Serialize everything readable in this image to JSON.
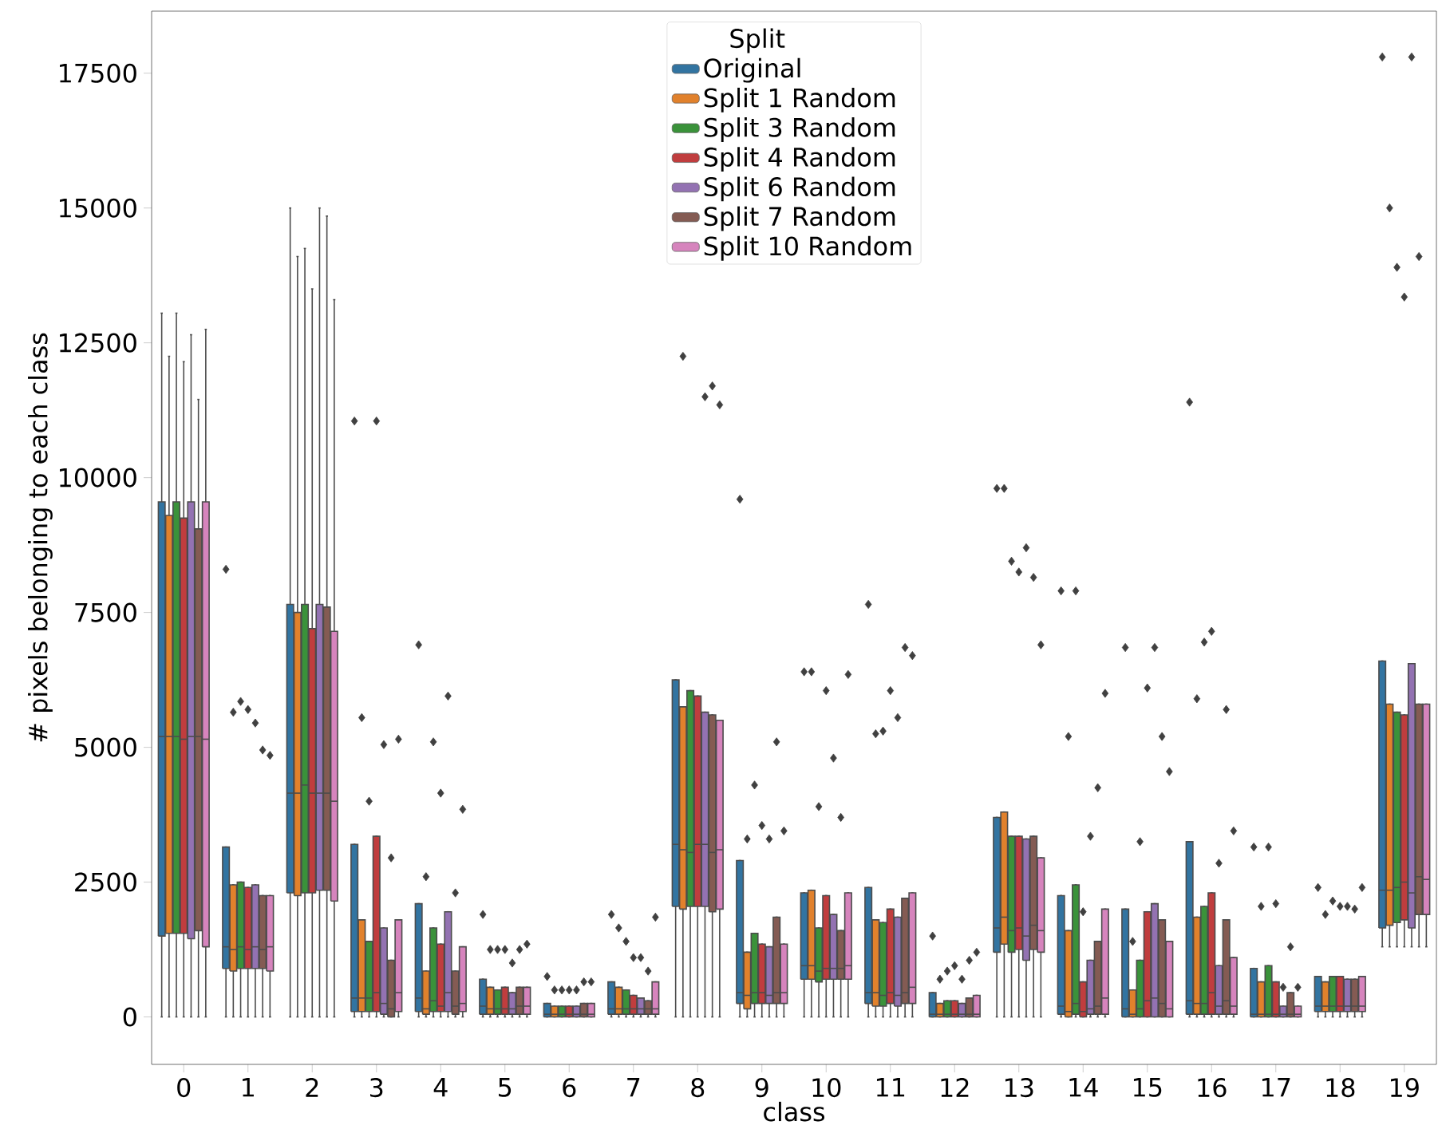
{
  "chart_data": {
    "type": "box",
    "xlabel": "class",
    "ylabel": "# pixels belonging to each class",
    "legend_title": "Split",
    "legend": "top",
    "categories": [
      "0",
      "1",
      "2",
      "3",
      "4",
      "5",
      "6",
      "7",
      "8",
      "9",
      "10",
      "11",
      "12",
      "13",
      "14",
      "15",
      "16",
      "17",
      "18",
      "19"
    ],
    "ylim": [
      -880,
      18650
    ],
    "yticks": [
      0,
      2500,
      5000,
      7500,
      10000,
      12500,
      15000,
      17500
    ],
    "series": [
      {
        "name": "Original",
        "color": "#3274a1",
        "boxes": [
          {
            "low": 0,
            "q1": 1500,
            "median": 5200,
            "q3": 9550,
            "high": 13050
          },
          {
            "low": 0,
            "q1": 900,
            "median": 1300,
            "q3": 3150,
            "high": 3150,
            "outliers": [
              8300
            ]
          },
          {
            "low": 0,
            "q1": 2300,
            "median": 4150,
            "q3": 7650,
            "high": 15000
          },
          {
            "low": 0,
            "q1": 100,
            "median": 350,
            "q3": 3200,
            "high": 3200,
            "outliers": [
              11050
            ]
          },
          {
            "low": 0,
            "q1": 100,
            "median": 350,
            "q3": 2100,
            "high": 2100,
            "outliers": [
              6900
            ]
          },
          {
            "low": 0,
            "q1": 50,
            "median": 200,
            "q3": 700,
            "high": 700,
            "outliers": [
              1900
            ]
          },
          {
            "low": 0,
            "q1": 0,
            "median": 50,
            "q3": 250,
            "high": 250,
            "outliers": [
              750
            ]
          },
          {
            "low": 0,
            "q1": 50,
            "median": 150,
            "q3": 650,
            "high": 650,
            "outliers": [
              1900
            ]
          },
          {
            "low": 0,
            "q1": 2050,
            "median": 3200,
            "q3": 6250,
            "high": 6250
          },
          {
            "low": 0,
            "q1": 250,
            "median": 450,
            "q3": 2900,
            "high": 2900,
            "outliers": [
              9600
            ]
          },
          {
            "low": 0,
            "q1": 700,
            "median": 950,
            "q3": 2300,
            "high": 2300,
            "outliers": [
              6400
            ]
          },
          {
            "low": 0,
            "q1": 250,
            "median": 450,
            "q3": 2400,
            "high": 2400,
            "outliers": [
              7650
            ]
          },
          {
            "low": 0,
            "q1": 0,
            "median": 50,
            "q3": 450,
            "high": 450,
            "outliers": [
              1500
            ]
          },
          {
            "low": 0,
            "q1": 1200,
            "median": 1650,
            "q3": 3700,
            "high": 3700,
            "outliers": [
              9800
            ]
          },
          {
            "low": 0,
            "q1": 50,
            "median": 200,
            "q3": 2250,
            "high": 2250,
            "outliers": [
              7900
            ]
          },
          {
            "low": 0,
            "q1": 0,
            "median": 150,
            "q3": 2000,
            "high": 2000,
            "outliers": [
              6850
            ]
          },
          {
            "low": 0,
            "q1": 50,
            "median": 300,
            "q3": 3250,
            "high": 3250,
            "outliers": [
              11400
            ]
          },
          {
            "low": 0,
            "q1": 0,
            "median": 50,
            "q3": 900,
            "high": 900,
            "outliers": [
              3150
            ]
          },
          {
            "low": 0,
            "q1": 100,
            "median": 200,
            "q3": 750,
            "high": 750,
            "outliers": [
              2400
            ]
          },
          {
            "low": 1300,
            "q1": 1650,
            "median": 2350,
            "q3": 6600,
            "high": 6600,
            "outliers": [
              17800
            ]
          }
        ]
      },
      {
        "name": "Split 1 Random",
        "color": "#e1812c",
        "boxes": [
          {
            "low": 0,
            "q1": 1550,
            "median": 5200,
            "q3": 9300,
            "high": 12250
          },
          {
            "low": 0,
            "q1": 850,
            "median": 1250,
            "q3": 2450,
            "high": 2450,
            "outliers": [
              5650
            ]
          },
          {
            "low": 0,
            "q1": 2250,
            "median": 4150,
            "q3": 7500,
            "high": 14100
          },
          {
            "low": 0,
            "q1": 100,
            "median": 350,
            "q3": 1800,
            "high": 1800,
            "outliers": [
              5550
            ]
          },
          {
            "low": 0,
            "q1": 50,
            "median": 150,
            "q3": 850,
            "high": 850,
            "outliers": [
              2600
            ]
          },
          {
            "low": 0,
            "q1": 50,
            "median": 150,
            "q3": 550,
            "high": 550,
            "outliers": [
              1250
            ]
          },
          {
            "low": 0,
            "q1": 0,
            "median": 50,
            "q3": 200,
            "high": 200,
            "outliers": [
              500
            ]
          },
          {
            "low": 0,
            "q1": 50,
            "median": 150,
            "q3": 550,
            "high": 550,
            "outliers": [
              1650
            ]
          },
          {
            "low": 0,
            "q1": 2000,
            "median": 3100,
            "q3": 5750,
            "high": 5750,
            "outliers": [
              12250
            ]
          },
          {
            "low": 0,
            "q1": 150,
            "median": 400,
            "q3": 1200,
            "high": 1200,
            "outliers": [
              3300
            ]
          },
          {
            "low": 0,
            "q1": 700,
            "median": 950,
            "q3": 2350,
            "high": 2350,
            "outliers": [
              6400
            ]
          },
          {
            "low": 0,
            "q1": 200,
            "median": 450,
            "q3": 1800,
            "high": 1800,
            "outliers": [
              5250
            ]
          },
          {
            "low": 0,
            "q1": 0,
            "median": 50,
            "q3": 250,
            "high": 250,
            "outliers": [
              700
            ]
          },
          {
            "low": 0,
            "q1": 1350,
            "median": 1850,
            "q3": 3800,
            "high": 3800,
            "outliers": [
              9800
            ]
          },
          {
            "low": 0,
            "q1": 0,
            "median": 100,
            "q3": 1600,
            "high": 1600,
            "outliers": [
              5200
            ]
          },
          {
            "low": 0,
            "q1": 0,
            "median": 50,
            "q3": 500,
            "high": 500,
            "outliers": [
              1400
            ]
          },
          {
            "low": 0,
            "q1": 50,
            "median": 250,
            "q3": 1850,
            "high": 1850,
            "outliers": [
              5900
            ]
          },
          {
            "low": 0,
            "q1": 0,
            "median": 50,
            "q3": 650,
            "high": 650,
            "outliers": [
              2050
            ]
          },
          {
            "low": 0,
            "q1": 100,
            "median": 200,
            "q3": 650,
            "high": 650,
            "outliers": [
              1900
            ]
          },
          {
            "low": 1300,
            "q1": 1700,
            "median": 2350,
            "q3": 5800,
            "high": 5800,
            "outliers": [
              15000
            ]
          }
        ]
      },
      {
        "name": "Split 3 Random",
        "color": "#3a923a",
        "boxes": [
          {
            "low": 0,
            "q1": 1550,
            "median": 5200,
            "q3": 9550,
            "high": 13050
          },
          {
            "low": 0,
            "q1": 900,
            "median": 1300,
            "q3": 2500,
            "high": 2500,
            "outliers": [
              5850
            ]
          },
          {
            "low": 0,
            "q1": 2300,
            "median": 4300,
            "q3": 7650,
            "high": 14250
          },
          {
            "low": 0,
            "q1": 100,
            "median": 350,
            "q3": 1400,
            "high": 1400,
            "outliers": [
              4000
            ]
          },
          {
            "low": 0,
            "q1": 100,
            "median": 300,
            "q3": 1650,
            "high": 1650,
            "outliers": [
              5100
            ]
          },
          {
            "low": 0,
            "q1": 50,
            "median": 150,
            "q3": 500,
            "high": 500,
            "outliers": [
              1250
            ]
          },
          {
            "low": 0,
            "q1": 0,
            "median": 50,
            "q3": 200,
            "high": 200,
            "outliers": [
              500
            ]
          },
          {
            "low": 0,
            "q1": 50,
            "median": 150,
            "q3": 500,
            "high": 500,
            "outliers": [
              1400
            ]
          },
          {
            "low": 0,
            "q1": 2050,
            "median": 3050,
            "q3": 6050,
            "high": 6050
          },
          {
            "low": 0,
            "q1": 250,
            "median": 450,
            "q3": 1550,
            "high": 1550,
            "outliers": [
              4300
            ]
          },
          {
            "low": 0,
            "q1": 650,
            "median": 850,
            "q3": 1650,
            "high": 1650,
            "outliers": [
              3900
            ]
          },
          {
            "low": 0,
            "q1": 200,
            "median": 400,
            "q3": 1750,
            "high": 1750,
            "outliers": [
              5300
            ]
          },
          {
            "low": 0,
            "q1": 0,
            "median": 50,
            "q3": 300,
            "high": 300,
            "outliers": [
              850
            ]
          },
          {
            "low": 0,
            "q1": 1200,
            "median": 1600,
            "q3": 3350,
            "high": 3350,
            "outliers": [
              8450
            ]
          },
          {
            "low": 0,
            "q1": 50,
            "median": 250,
            "q3": 2450,
            "high": 2450,
            "outliers": [
              7900
            ]
          },
          {
            "low": 0,
            "q1": 0,
            "median": 150,
            "q3": 1050,
            "high": 1050,
            "outliers": [
              3250
            ]
          },
          {
            "low": 0,
            "q1": 50,
            "median": 250,
            "q3": 2050,
            "high": 2050,
            "outliers": [
              6950
            ]
          },
          {
            "low": 0,
            "q1": 0,
            "median": 50,
            "q3": 950,
            "high": 950,
            "outliers": [
              3150
            ]
          },
          {
            "low": 0,
            "q1": 100,
            "median": 200,
            "q3": 750,
            "high": 750,
            "outliers": [
              2150
            ]
          },
          {
            "low": 1300,
            "q1": 1750,
            "median": 2400,
            "q3": 5650,
            "high": 5650,
            "outliers": [
              13900
            ]
          }
        ]
      },
      {
        "name": "Split 4 Random",
        "color": "#c03d3e",
        "boxes": [
          {
            "low": 0,
            "q1": 1550,
            "median": 5150,
            "q3": 9250,
            "high": 12150
          },
          {
            "low": 0,
            "q1": 900,
            "median": 1250,
            "q3": 2400,
            "high": 2400,
            "outliers": [
              5700
            ]
          },
          {
            "low": 0,
            "q1": 2300,
            "median": 4150,
            "q3": 7200,
            "high": 13500
          },
          {
            "low": 0,
            "q1": 100,
            "median": 450,
            "q3": 3350,
            "high": 3350,
            "outliers": [
              11050
            ]
          },
          {
            "low": 0,
            "q1": 100,
            "median": 200,
            "q3": 1350,
            "high": 1350,
            "outliers": [
              4150
            ]
          },
          {
            "low": 0,
            "q1": 50,
            "median": 150,
            "q3": 550,
            "high": 550,
            "outliers": [
              1250
            ]
          },
          {
            "low": 0,
            "q1": 0,
            "median": 50,
            "q3": 200,
            "high": 200,
            "outliers": [
              500
            ]
          },
          {
            "low": 0,
            "q1": 50,
            "median": 150,
            "q3": 400,
            "high": 400,
            "outliers": [
              1100
            ]
          },
          {
            "low": 0,
            "q1": 2050,
            "median": 3200,
            "q3": 5950,
            "high": 5950
          },
          {
            "low": 0,
            "q1": 250,
            "median": 450,
            "q3": 1350,
            "high": 1350,
            "outliers": [
              3550
            ]
          },
          {
            "low": 0,
            "q1": 700,
            "median": 900,
            "q3": 2250,
            "high": 2250,
            "outliers": [
              6050
            ]
          },
          {
            "low": 0,
            "q1": 250,
            "median": 450,
            "q3": 2000,
            "high": 2000,
            "outliers": [
              6050
            ]
          },
          {
            "low": 0,
            "q1": 0,
            "median": 50,
            "q3": 300,
            "high": 300,
            "outliers": [
              950
            ]
          },
          {
            "low": 0,
            "q1": 1250,
            "median": 1650,
            "q3": 3350,
            "high": 3350,
            "outliers": [
              8250
            ]
          },
          {
            "low": 0,
            "q1": 0,
            "median": 100,
            "q3": 650,
            "high": 650,
            "outliers": [
              1950
            ]
          },
          {
            "low": 0,
            "q1": 0,
            "median": 300,
            "q3": 1950,
            "high": 1950,
            "outliers": [
              6100
            ]
          },
          {
            "low": 0,
            "q1": 50,
            "median": 450,
            "q3": 2300,
            "high": 2300,
            "outliers": [
              7150
            ]
          },
          {
            "low": 0,
            "q1": 0,
            "median": 50,
            "q3": 650,
            "high": 650,
            "outliers": [
              2100
            ]
          },
          {
            "low": 0,
            "q1": 100,
            "median": 200,
            "q3": 750,
            "high": 750,
            "outliers": [
              2050
            ]
          },
          {
            "low": 1300,
            "q1": 1800,
            "median": 2500,
            "q3": 5600,
            "high": 5600,
            "outliers": [
              13350
            ]
          }
        ]
      },
      {
        "name": "Split 6 Random",
        "color": "#9372b2",
        "boxes": [
          {
            "low": 0,
            "q1": 1450,
            "median": 5200,
            "q3": 9550,
            "high": 12650
          },
          {
            "low": 0,
            "q1": 900,
            "median": 1300,
            "q3": 2450,
            "high": 2450,
            "outliers": [
              5450
            ]
          },
          {
            "low": 0,
            "q1": 2350,
            "median": 4150,
            "q3": 7650,
            "high": 15000
          },
          {
            "low": 0,
            "q1": 50,
            "median": 250,
            "q3": 1650,
            "high": 1650,
            "outliers": [
              5050
            ]
          },
          {
            "low": 0,
            "q1": 100,
            "median": 450,
            "q3": 1950,
            "high": 1950,
            "outliers": [
              5950
            ]
          },
          {
            "low": 0,
            "q1": 50,
            "median": 150,
            "q3": 450,
            "high": 450,
            "outliers": [
              1000
            ]
          },
          {
            "low": 0,
            "q1": 0,
            "median": 50,
            "q3": 200,
            "high": 200,
            "outliers": [
              500
            ]
          },
          {
            "low": 0,
            "q1": 50,
            "median": 150,
            "q3": 350,
            "high": 350,
            "outliers": [
              1100
            ]
          },
          {
            "low": 0,
            "q1": 2050,
            "median": 3200,
            "q3": 5650,
            "high": 5650,
            "outliers": [
              11500
            ]
          },
          {
            "low": 0,
            "q1": 250,
            "median": 400,
            "q3": 1300,
            "high": 1300,
            "outliers": [
              3300
            ]
          },
          {
            "low": 0,
            "q1": 700,
            "median": 900,
            "q3": 1900,
            "high": 1900,
            "outliers": [
              4800
            ]
          },
          {
            "low": 0,
            "q1": 200,
            "median": 400,
            "q3": 1850,
            "high": 1850,
            "outliers": [
              5550
            ]
          },
          {
            "low": 0,
            "q1": 0,
            "median": 50,
            "q3": 250,
            "high": 250,
            "outliers": [
              700
            ]
          },
          {
            "low": 0,
            "q1": 1050,
            "median": 1500,
            "q3": 3300,
            "high": 3300,
            "outliers": [
              8700
            ]
          },
          {
            "low": 0,
            "q1": 50,
            "median": 150,
            "q3": 1050,
            "high": 1050,
            "outliers": [
              3350
            ]
          },
          {
            "low": 0,
            "q1": 0,
            "median": 350,
            "q3": 2100,
            "high": 2100,
            "outliers": [
              6850
            ]
          },
          {
            "low": 0,
            "q1": 50,
            "median": 200,
            "q3": 950,
            "high": 950,
            "outliers": [
              2850
            ]
          },
          {
            "low": 0,
            "q1": 0,
            "median": 50,
            "q3": 200,
            "high": 200,
            "outliers": [
              550
            ]
          },
          {
            "low": 0,
            "q1": 100,
            "median": 200,
            "q3": 700,
            "high": 700,
            "outliers": [
              2050
            ]
          },
          {
            "low": 1300,
            "q1": 1650,
            "median": 2300,
            "q3": 6550,
            "high": 6550,
            "outliers": [
              17800
            ]
          }
        ]
      },
      {
        "name": "Split 7 Random",
        "color": "#845b53",
        "boxes": [
          {
            "low": 0,
            "q1": 1600,
            "median": 5200,
            "q3": 9050,
            "high": 11450
          },
          {
            "low": 0,
            "q1": 900,
            "median": 1250,
            "q3": 2250,
            "high": 2250,
            "outliers": [
              4950
            ]
          },
          {
            "low": 0,
            "q1": 2350,
            "median": 4150,
            "q3": 7600,
            "high": 14850
          },
          {
            "low": 0,
            "q1": 0,
            "median": 150,
            "q3": 1050,
            "high": 1050,
            "outliers": [
              2950
            ]
          },
          {
            "low": 0,
            "q1": 50,
            "median": 200,
            "q3": 850,
            "high": 850,
            "outliers": [
              2300
            ]
          },
          {
            "low": 0,
            "q1": 50,
            "median": 200,
            "q3": 550,
            "high": 550,
            "outliers": [
              1250
            ]
          },
          {
            "low": 0,
            "q1": 0,
            "median": 50,
            "q3": 250,
            "high": 250,
            "outliers": [
              650
            ]
          },
          {
            "low": 0,
            "q1": 50,
            "median": 150,
            "q3": 300,
            "high": 300,
            "outliers": [
              850
            ]
          },
          {
            "low": 0,
            "q1": 1950,
            "median": 3050,
            "q3": 5600,
            "high": 5600,
            "outliers": [
              11700
            ]
          },
          {
            "low": 0,
            "q1": 250,
            "median": 450,
            "q3": 1850,
            "high": 1850,
            "outliers": [
              5100
            ]
          },
          {
            "low": 0,
            "q1": 700,
            "median": 900,
            "q3": 1600,
            "high": 1600,
            "outliers": [
              3700
            ]
          },
          {
            "low": 0,
            "q1": 250,
            "median": 450,
            "q3": 2200,
            "high": 2200,
            "outliers": [
              6850
            ]
          },
          {
            "low": 0,
            "q1": 0,
            "median": 50,
            "q3": 350,
            "high": 350,
            "outliers": [
              1050
            ]
          },
          {
            "low": 0,
            "q1": 1250,
            "median": 1700,
            "q3": 3350,
            "high": 3350,
            "outliers": [
              8150
            ]
          },
          {
            "low": 0,
            "q1": 50,
            "median": 200,
            "q3": 1400,
            "high": 1400,
            "outliers": [
              4250
            ]
          },
          {
            "low": 0,
            "q1": 0,
            "median": 250,
            "q3": 1800,
            "high": 1800,
            "outliers": [
              5200
            ]
          },
          {
            "low": 0,
            "q1": 50,
            "median": 300,
            "q3": 1800,
            "high": 1800,
            "outliers": [
              5700
            ]
          },
          {
            "low": 0,
            "q1": 0,
            "median": 50,
            "q3": 450,
            "high": 450,
            "outliers": [
              1300
            ]
          },
          {
            "low": 0,
            "q1": 100,
            "median": 200,
            "q3": 700,
            "high": 700,
            "outliers": [
              2000
            ]
          },
          {
            "low": 1300,
            "q1": 1900,
            "median": 2600,
            "q3": 5800,
            "high": 5800,
            "outliers": [
              14100
            ]
          }
        ]
      },
      {
        "name": "Split 10 Random",
        "color": "#d684bd",
        "boxes": [
          {
            "low": 0,
            "q1": 1300,
            "median": 5150,
            "q3": 9550,
            "high": 12750
          },
          {
            "low": 0,
            "q1": 850,
            "median": 1300,
            "q3": 2250,
            "high": 2250,
            "outliers": [
              4850
            ]
          },
          {
            "low": 0,
            "q1": 2150,
            "median": 4000,
            "q3": 7150,
            "high": 13300
          },
          {
            "low": 0,
            "q1": 100,
            "median": 450,
            "q3": 1800,
            "high": 1800,
            "outliers": [
              5150
            ]
          },
          {
            "low": 0,
            "q1": 100,
            "median": 250,
            "q3": 1300,
            "high": 1300,
            "outliers": [
              3850
            ]
          },
          {
            "low": 0,
            "q1": 50,
            "median": 200,
            "q3": 550,
            "high": 550,
            "outliers": [
              1350
            ]
          },
          {
            "low": 0,
            "q1": 0,
            "median": 50,
            "q3": 250,
            "high": 250,
            "outliers": [
              650
            ]
          },
          {
            "low": 0,
            "q1": 50,
            "median": 150,
            "q3": 650,
            "high": 650,
            "outliers": [
              1850
            ]
          },
          {
            "low": 0,
            "q1": 2000,
            "median": 3100,
            "q3": 5500,
            "high": 5500,
            "outliers": [
              11350
            ]
          },
          {
            "low": 0,
            "q1": 250,
            "median": 450,
            "q3": 1350,
            "high": 1350,
            "outliers": [
              3450
            ]
          },
          {
            "low": 0,
            "q1": 700,
            "median": 950,
            "q3": 2300,
            "high": 2300,
            "outliers": [
              6350
            ]
          },
          {
            "low": 0,
            "q1": 250,
            "median": 550,
            "q3": 2300,
            "high": 2300,
            "outliers": [
              6700
            ]
          },
          {
            "low": 0,
            "q1": 0,
            "median": 50,
            "q3": 400,
            "high": 400,
            "outliers": [
              1200
            ]
          },
          {
            "low": 0,
            "q1": 1200,
            "median": 1600,
            "q3": 2950,
            "high": 2950,
            "outliers": [
              6900
            ]
          },
          {
            "low": 0,
            "q1": 50,
            "median": 350,
            "q3": 2000,
            "high": 2000,
            "outliers": [
              6000
            ]
          },
          {
            "low": 0,
            "q1": 0,
            "median": 150,
            "q3": 1400,
            "high": 1400,
            "outliers": [
              4550
            ]
          },
          {
            "low": 0,
            "q1": 50,
            "median": 200,
            "q3": 1100,
            "high": 1100,
            "outliers": [
              3450
            ]
          },
          {
            "low": 0,
            "q1": 0,
            "median": 50,
            "q3": 200,
            "high": 200,
            "outliers": [
              550
            ]
          },
          {
            "low": 0,
            "q1": 100,
            "median": 200,
            "q3": 750,
            "high": 750,
            "outliers": [
              2400
            ]
          },
          {
            "low": 1300,
            "q1": 1900,
            "median": 2550,
            "q3": 5800,
            "high": 5800
          }
        ]
      }
    ]
  }
}
